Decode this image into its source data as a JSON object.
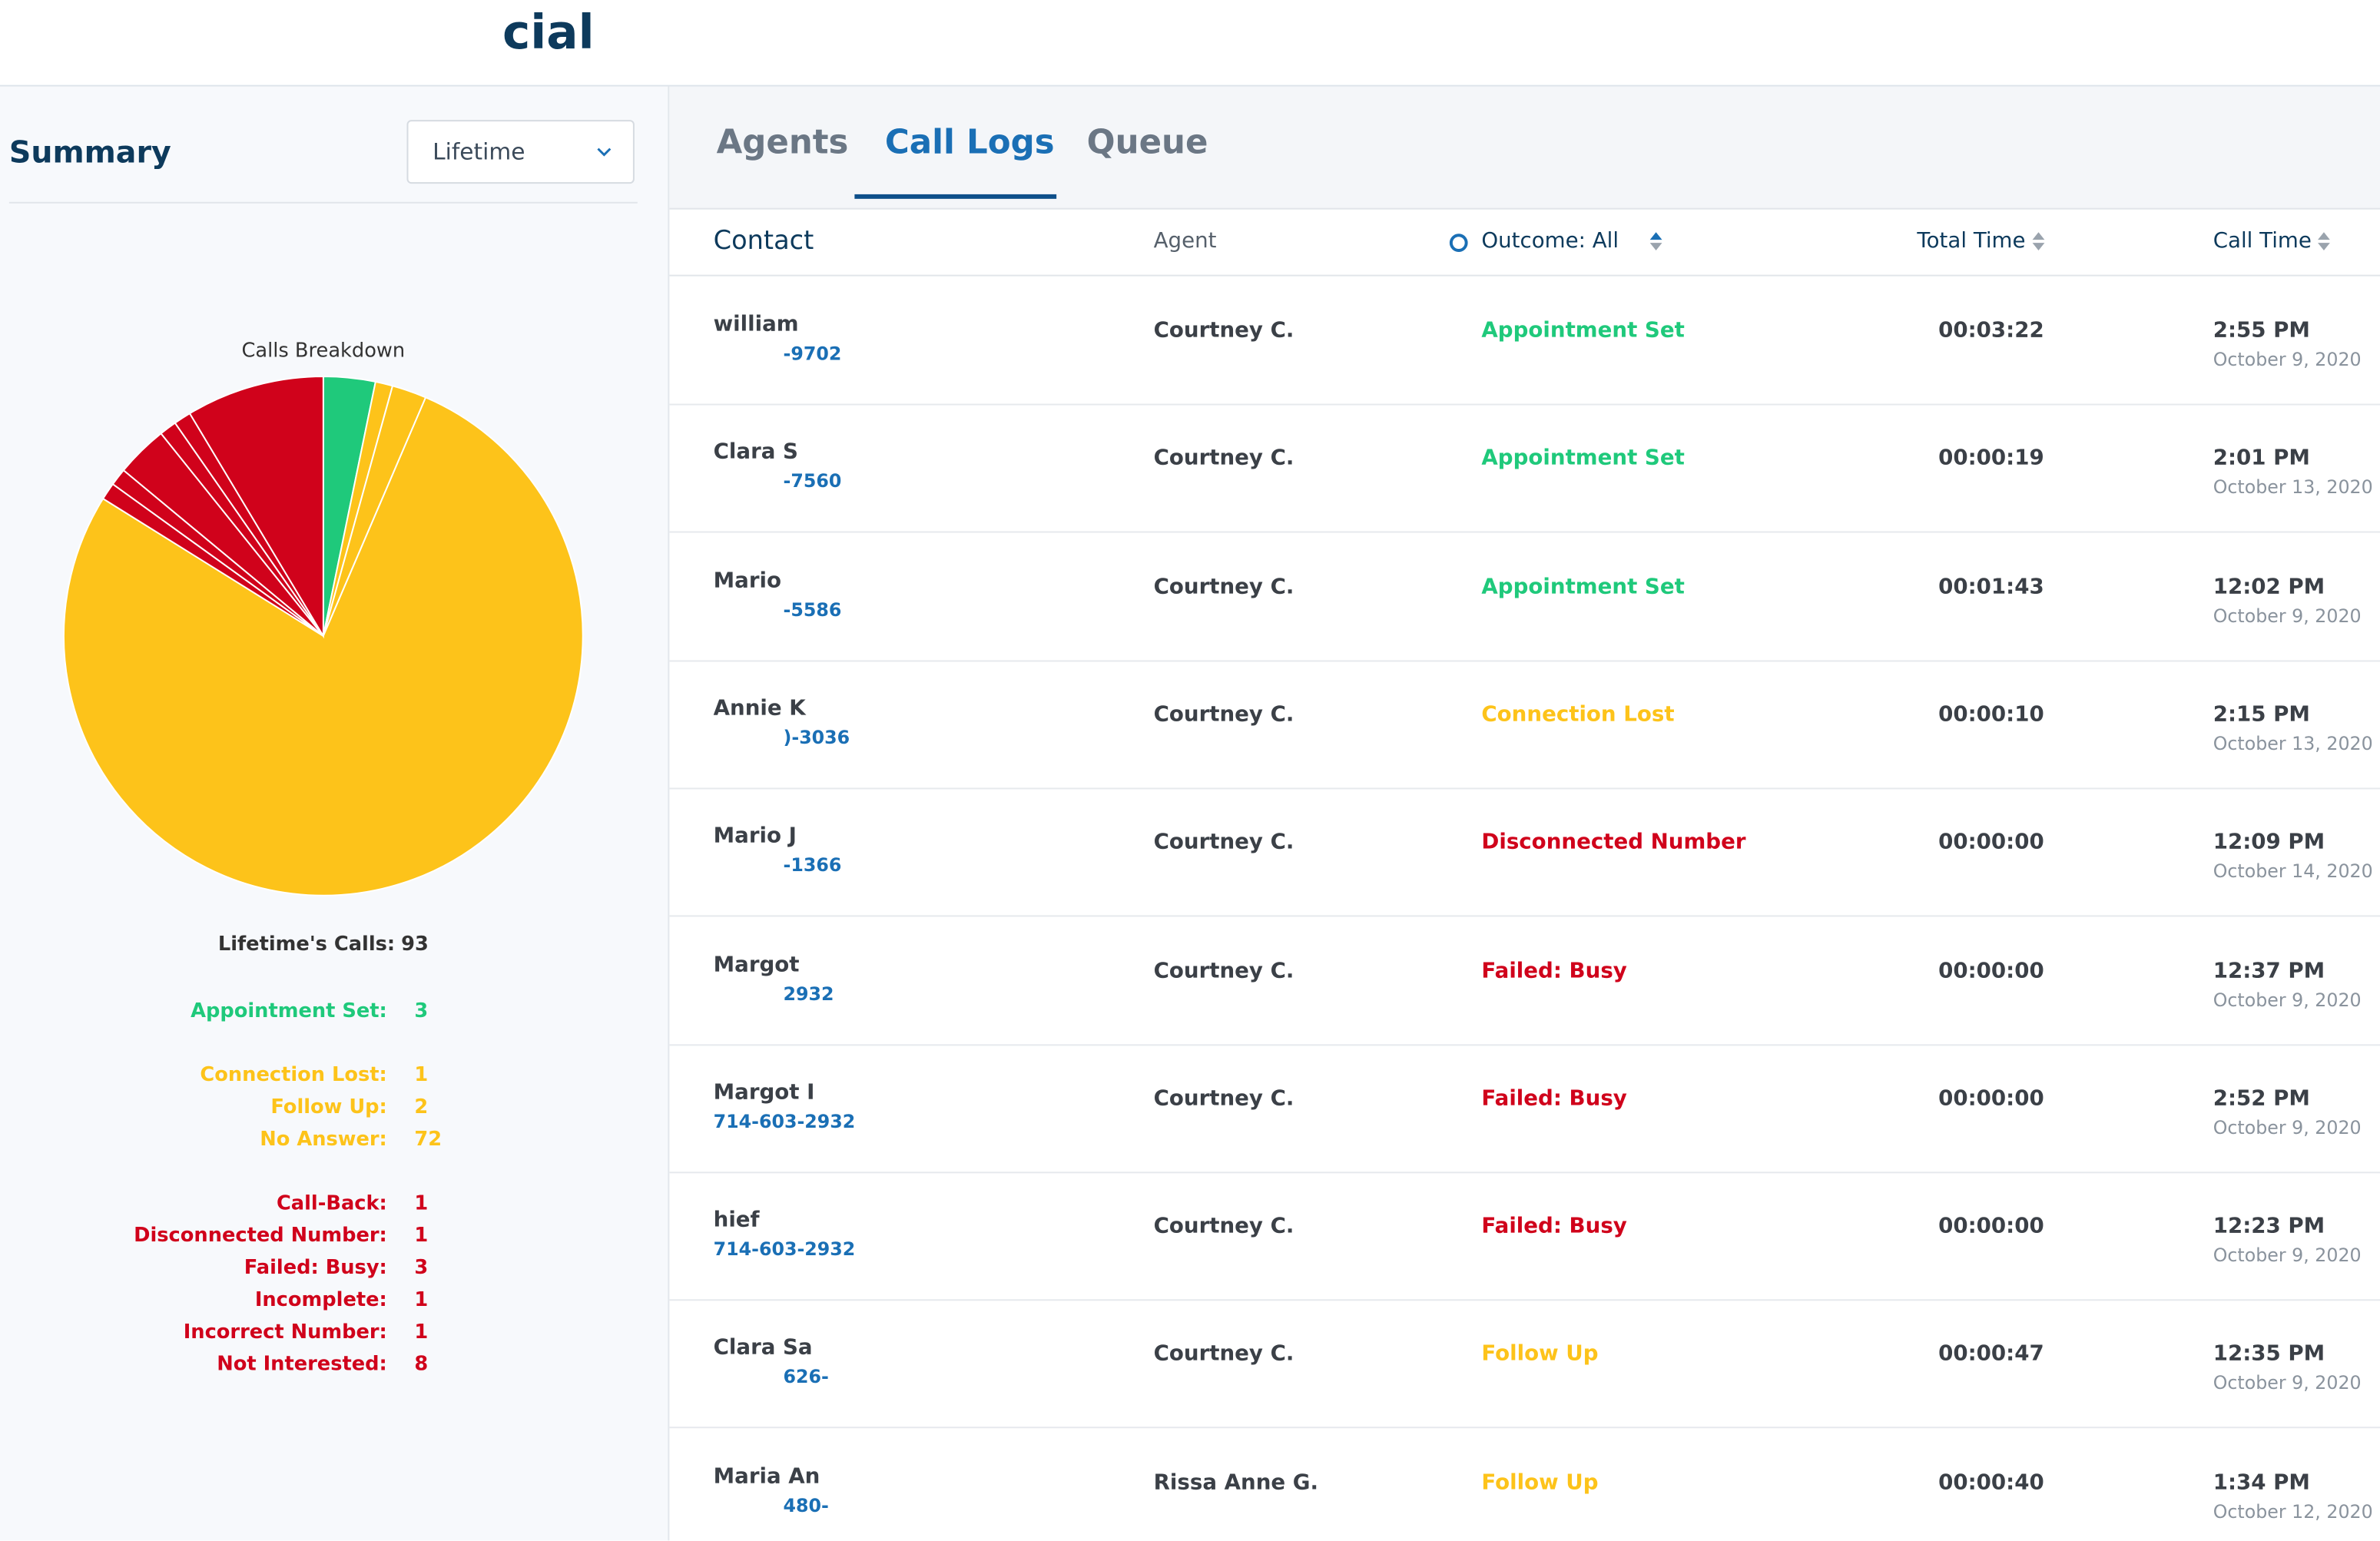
{
  "header": {
    "logo": "cial"
  },
  "summary": {
    "title": "Summary",
    "period": "Lifetime",
    "chart": {
      "type": "pie",
      "title": "Calls Breakdown",
      "total_label": "Lifetime's Calls:",
      "total": 93,
      "items": [
        {
          "name": "Appointment Set:",
          "value": 3,
          "color": "#1fc97b"
        },
        {
          "name": "Connection Lost:",
          "value": 1,
          "color": "#fdc31a"
        },
        {
          "name": "Follow Up:",
          "value": 2,
          "color": "#fdc31a"
        },
        {
          "name": "No Answer:",
          "value": 72,
          "color": "#fdc31a"
        },
        {
          "name": "Call-Back:",
          "value": 1,
          "color": "#d0021b"
        },
        {
          "name": "Disconnected Number:",
          "value": 1,
          "color": "#d0021b"
        },
        {
          "name": "Failed: Busy:",
          "value": 3,
          "color": "#d0021b"
        },
        {
          "name": "Incomplete:",
          "value": 1,
          "color": "#d0021b"
        },
        {
          "name": "Incorrect Number:",
          "value": 1,
          "color": "#d0021b"
        },
        {
          "name": "Not Interested:",
          "value": 8,
          "color": "#d0021b"
        }
      ]
    }
  },
  "tabs": [
    "Agents",
    "Call Logs",
    "Queue"
  ],
  "table": {
    "columns": [
      "Contact",
      "Agent",
      "Outcome: All",
      "Total Time",
      "Call Time"
    ],
    "rows": [
      {
        "name": "william",
        "phone": "-9702",
        "agent": "Courtney C.",
        "outcome": "Appointment Set",
        "color": "#1fc97b",
        "total": "00:03:22",
        "time": "2:55 PM",
        "date": "October 9, 2020"
      },
      {
        "name": "Clara S",
        "phone": "-7560",
        "agent": "Courtney C.",
        "outcome": "Appointment Set",
        "color": "#1fc97b",
        "total": "00:00:19",
        "time": "2:01 PM",
        "date": "October 13, 2020"
      },
      {
        "name": "Mario",
        "phone": "-5586",
        "agent": "Courtney C.",
        "outcome": "Appointment Set",
        "color": "#1fc97b",
        "total": "00:01:43",
        "time": "12:02 PM",
        "date": "October 9, 2020"
      },
      {
        "name": "Annie K",
        "phone": ")-3036",
        "agent": "Courtney C.",
        "outcome": "Connection Lost",
        "color": "#fdc31a",
        "total": "00:00:10",
        "time": "2:15 PM",
        "date": "October 13, 2020"
      },
      {
        "name": "Mario J",
        "phone": "-1366",
        "agent": "Courtney C.",
        "outcome": "Disconnected Number",
        "color": "#d0021b",
        "total": "00:00:00",
        "time": "12:09 PM",
        "date": "October 14, 2020"
      },
      {
        "name": "Margot",
        "phone": "2932",
        "agent": "Courtney C.",
        "outcome": "Failed: Busy",
        "color": "#d0021b",
        "total": "00:00:00",
        "time": "12:37 PM",
        "date": "October 9, 2020"
      },
      {
        "name": "Margot I",
        "phone": "714-603-2932",
        "agent": "Courtney C.",
        "outcome": "Failed: Busy",
        "color": "#d0021b",
        "total": "00:00:00",
        "time": "2:52 PM",
        "date": "October 9, 2020"
      },
      {
        "name": "hief",
        "phone": "714-603-2932",
        "agent": "Courtney C.",
        "outcome": "Failed: Busy",
        "color": "#d0021b",
        "total": "00:00:00",
        "time": "12:23 PM",
        "date": "October 9, 2020"
      },
      {
        "name": "Clara Sa",
        "phone": "626-",
        "agent": "Courtney C.",
        "outcome": "Follow Up",
        "color": "#fdc31a",
        "total": "00:00:47",
        "time": "12:35 PM",
        "date": "October 9, 2020"
      },
      {
        "name": "Maria An",
        "phone": "480-",
        "agent": "Rissa Anne G.",
        "outcome": "Follow Up",
        "color": "#fdc31a",
        "total": "00:00:40",
        "time": "1:34 PM",
        "date": "October 12, 2020"
      }
    ]
  }
}
